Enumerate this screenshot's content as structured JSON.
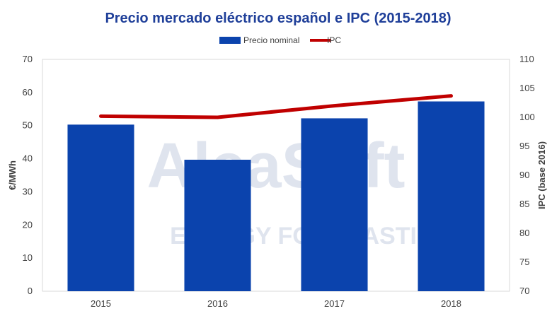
{
  "chart_data": {
    "type": "bar+line",
    "title": "Precio mercado eléctrico español e IPC (2015-2018)",
    "categories": [
      "2015",
      "2016",
      "2017",
      "2018"
    ],
    "series": [
      {
        "name": "Precio nominal",
        "type": "bar",
        "axis": "left",
        "color": "#0b43ad",
        "values": [
          50.3,
          39.7,
          52.2,
          57.3
        ]
      },
      {
        "name": "IPC",
        "type": "line",
        "axis": "right",
        "color": "#c00000",
        "values": [
          100.2,
          100.0,
          102.0,
          103.7
        ]
      }
    ],
    "ylabel_left": "€/MWh",
    "ylabel_right": "IPC (base 2016)",
    "ylim_left": [
      0,
      70
    ],
    "yticks_left": [
      "0",
      "10",
      "20",
      "30",
      "40",
      "50",
      "60",
      "70"
    ],
    "ylim_right": [
      70,
      110
    ],
    "yticks_right": [
      "70",
      "75",
      "80",
      "85",
      "90",
      "95",
      "100",
      "105",
      "110"
    ],
    "legend_position": "top-center",
    "grid": false
  },
  "watermark": {
    "line1": "AleaSoft",
    "line2": "ENERGY FORECASTING"
  }
}
